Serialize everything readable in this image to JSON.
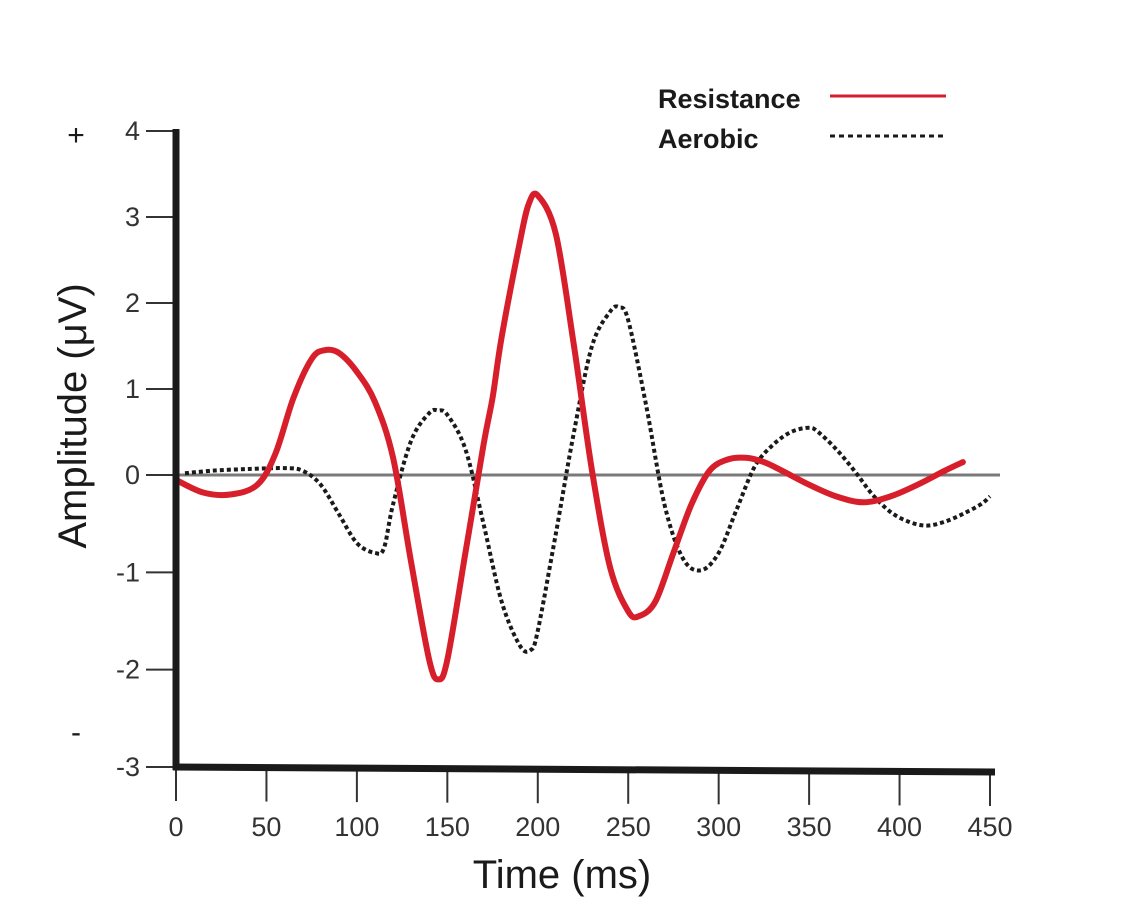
{
  "chart_data": {
    "type": "line",
    "title": "",
    "xlabel": "Time (ms)",
    "ylabel": "Amplitude (μV)",
    "x_ticks": [
      0,
      50,
      100,
      150,
      200,
      250,
      300,
      350,
      400,
      450
    ],
    "y_ticks": [
      4,
      3,
      2,
      1,
      0,
      -1,
      -2,
      -3
    ],
    "xlim": [
      0,
      450
    ],
    "ylim": [
      -3,
      4
    ],
    "polarity_labels": {
      "positive": "+",
      "negative": "-"
    },
    "legend_position": "top-right",
    "baseline": 0,
    "series": [
      {
        "name": "Resistance",
        "style": "solid",
        "color": "#d71f2b",
        "x": [
          0,
          15,
          30,
          45,
          55,
          65,
          75,
          82,
          90,
          100,
          110,
          120,
          130,
          140,
          145,
          150,
          160,
          170,
          175,
          180,
          190,
          195,
          200,
          210,
          220,
          230,
          240,
          250,
          256,
          265,
          275,
          285,
          295,
          305,
          315,
          325,
          335,
          350,
          365,
          380,
          395,
          410,
          425,
          435
        ],
        "y": [
          -0.05,
          -0.18,
          -0.2,
          -0.1,
          0.25,
          0.9,
          1.35,
          1.45,
          1.42,
          1.2,
          0.85,
          0.2,
          -0.9,
          -1.9,
          -2.1,
          -1.9,
          -0.8,
          0.35,
          0.9,
          1.6,
          2.7,
          3.15,
          3.25,
          2.8,
          1.5,
          0.05,
          -0.95,
          -1.4,
          -1.45,
          -1.3,
          -0.8,
          -0.3,
          0.05,
          0.18,
          0.2,
          0.15,
          0.05,
          -0.1,
          -0.22,
          -0.28,
          -0.22,
          -0.1,
          0.05,
          0.15
        ]
      },
      {
        "name": "Aerobic",
        "style": "dotted",
        "color": "#1a1a1a",
        "x": [
          5,
          20,
          40,
          60,
          70,
          80,
          90,
          100,
          110,
          115,
          120,
          130,
          140,
          145,
          150,
          160,
          170,
          180,
          190,
          196,
          200,
          210,
          220,
          230,
          240,
          245,
          250,
          260,
          270,
          280,
          290,
          300,
          310,
          320,
          330,
          340,
          350,
          355,
          365,
          375,
          385,
          395,
          405,
          415,
          425,
          435,
          445,
          450
        ],
        "y": [
          0.02,
          0.05,
          0.07,
          0.08,
          0.05,
          -0.1,
          -0.4,
          -0.7,
          -0.8,
          -0.75,
          -0.3,
          0.4,
          0.72,
          0.75,
          0.7,
          0.3,
          -0.5,
          -1.3,
          -1.75,
          -1.8,
          -1.6,
          -0.6,
          0.5,
          1.5,
          1.9,
          1.95,
          1.8,
          0.8,
          -0.3,
          -0.85,
          -0.98,
          -0.8,
          -0.35,
          0.1,
          0.35,
          0.5,
          0.55,
          0.5,
          0.3,
          0.05,
          -0.2,
          -0.38,
          -0.48,
          -0.52,
          -0.48,
          -0.4,
          -0.3,
          -0.22
        ]
      }
    ]
  }
}
